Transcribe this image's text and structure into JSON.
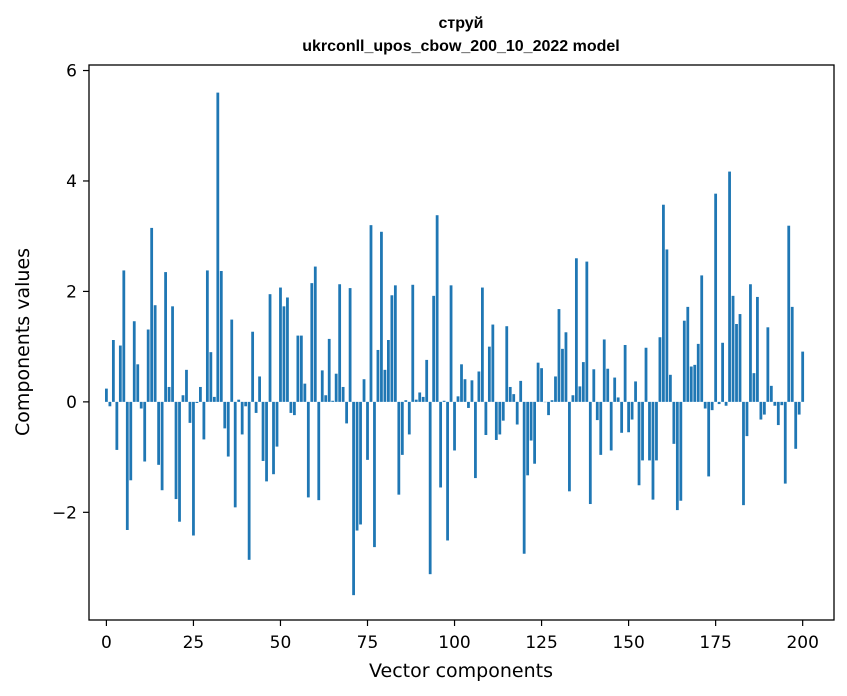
{
  "chart_data": {
    "type": "bar",
    "title_line1": "струй",
    "title_line2": "ukrconll_upos_cbow_200_10_2022 model",
    "xlabel": "Vector components",
    "ylabel": "Components values",
    "xlim": [
      -5,
      209
    ],
    "ylim": [
      -3.95,
      6.1
    ],
    "xticks": [
      0,
      25,
      50,
      75,
      100,
      125,
      150,
      175,
      200
    ],
    "xtick_labels": [
      "0",
      "25",
      "50",
      "75",
      "100",
      "125",
      "150",
      "175",
      "200"
    ],
    "yticks": [
      -2,
      0,
      2,
      4,
      6
    ],
    "ytick_labels": [
      "−2",
      "0",
      "2",
      "4",
      "6"
    ],
    "bar_color": "#1f77b4",
    "grid": false,
    "values": [
      0.24,
      -0.08,
      1.12,
      -0.87,
      1.02,
      2.38,
      -2.32,
      -1.42,
      1.46,
      0.68,
      -0.12,
      -1.08,
      1.31,
      3.15,
      1.75,
      -1.14,
      -1.6,
      2.35,
      0.27,
      1.73,
      -1.76,
      -2.17,
      0.12,
      0.58,
      -0.38,
      -2.42,
      -0.02,
      0.27,
      -0.68,
      2.38,
      0.9,
      0.09,
      5.6,
      2.37,
      -0.48,
      -0.99,
      1.49,
      -1.91,
      0.04,
      -0.59,
      -0.08,
      -2.86,
      1.27,
      -0.2,
      0.46,
      -1.07,
      -1.44,
      1.95,
      -1.31,
      -0.81,
      2.07,
      1.73,
      1.89,
      -0.2,
      -0.24,
      1.2,
      1.2,
      0.33,
      -1.73,
      2.15,
      2.45,
      -1.78,
      0.57,
      0.12,
      1.14,
      0.02,
      0.51,
      2.13,
      0.27,
      -0.39,
      2.06,
      -3.5,
      -2.33,
      -2.22,
      0.41,
      -1.05,
      3.2,
      -2.63,
      0.94,
      3.08,
      0.58,
      1.12,
      1.93,
      2.11,
      -1.68,
      -0.96,
      0.03,
      -0.59,
      2.12,
      0.04,
      0.17,
      0.09,
      0.76,
      -3.12,
      1.92,
      3.38,
      -1.55,
      0.02,
      -2.51,
      2.11,
      -0.88,
      0.1,
      0.68,
      0.41,
      -0.11,
      0.39,
      -1.38,
      0.55,
      2.07,
      -0.6,
      1.0,
      1.4,
      -0.69,
      -0.59,
      -0.34,
      1.37,
      0.27,
      0.14,
      -0.41,
      0.38,
      -2.75,
      -1.33,
      -0.7,
      -1.12,
      0.71,
      0.61,
      0.0,
      -0.24,
      0.03,
      0.46,
      1.68,
      0.96,
      1.26,
      -1.62,
      0.12,
      2.6,
      0.28,
      0.72,
      2.54,
      -1.85,
      0.59,
      -0.33,
      -0.96,
      1.13,
      0.6,
      -0.88,
      0.44,
      0.08,
      -0.56,
      1.03,
      -0.55,
      -0.32,
      0.37,
      -1.51,
      -1.06,
      0.98,
      -1.06,
      -1.77,
      -1.06,
      1.17,
      3.57,
      2.76,
      0.49,
      -0.76,
      -1.96,
      -1.79,
      1.47,
      1.72,
      0.64,
      0.67,
      1.05,
      2.29,
      -0.12,
      -1.35,
      -0.15,
      3.77,
      -0.04,
      1.07,
      -0.07,
      4.17,
      1.92,
      1.41,
      1.59,
      -1.87,
      -0.62,
      2.13,
      0.52,
      1.9,
      -0.32,
      -0.23,
      1.35,
      0.29,
      -0.07,
      -0.42,
      -0.06,
      -1.48,
      3.19,
      1.72,
      -0.85,
      -0.23,
      0.91
    ]
  }
}
